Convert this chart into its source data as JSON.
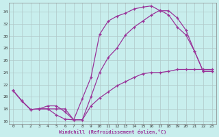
{
  "xlabel": "Windchill (Refroidissement éolien,°C)",
  "bg_color": "#c8eeed",
  "line_color": "#993399",
  "grid_color": "#b0c8c8",
  "xlim": [
    -0.5,
    23.5
  ],
  "ylim": [
    15.5,
    35.5
  ],
  "xticks": [
    0,
    1,
    2,
    3,
    4,
    5,
    6,
    7,
    8,
    9,
    10,
    11,
    12,
    13,
    14,
    15,
    16,
    17,
    18,
    19,
    20,
    21,
    22,
    23
  ],
  "yticks": [
    16,
    18,
    20,
    22,
    24,
    26,
    28,
    30,
    32,
    34
  ],
  "curve1_x": [
    0,
    1,
    2,
    3,
    4,
    5,
    6,
    7,
    8,
    9,
    10,
    11,
    12,
    13,
    14,
    15,
    16,
    17,
    18,
    19,
    20,
    21,
    22,
    23
  ],
  "curve1_y": [
    21.0,
    19.3,
    17.9,
    18.0,
    18.0,
    17.0,
    16.3,
    16.2,
    19.7,
    23.2,
    30.3,
    32.5,
    33.3,
    33.8,
    34.5,
    34.8,
    35.0,
    34.2,
    34.2,
    33.0,
    31.0,
    27.5,
    24.2,
    24.2
  ],
  "curve2_x": [
    0,
    1,
    2,
    3,
    4,
    5,
    6,
    7,
    8,
    9,
    10,
    11,
    12,
    13,
    14,
    15,
    16,
    17,
    18,
    19,
    20,
    21,
    22,
    23
  ],
  "curve2_y": [
    21.0,
    19.3,
    17.9,
    18.0,
    18.0,
    18.0,
    18.0,
    16.2,
    16.2,
    20.0,
    24.0,
    26.5,
    28.0,
    30.2,
    31.5,
    32.5,
    33.5,
    34.3,
    33.5,
    31.5,
    30.2,
    27.5,
    24.2,
    24.2
  ],
  "curve3_x": [
    0,
    1,
    2,
    3,
    4,
    5,
    6,
    7,
    8,
    9,
    10,
    11,
    12,
    13,
    14,
    15,
    16,
    17,
    18,
    19,
    20,
    21,
    22,
    23
  ],
  "curve3_y": [
    21.0,
    19.3,
    17.9,
    18.0,
    18.5,
    18.5,
    17.5,
    16.2,
    16.2,
    18.5,
    19.8,
    20.8,
    21.8,
    22.5,
    23.2,
    23.8,
    24.0,
    24.0,
    24.2,
    24.5,
    24.5,
    24.5,
    24.5,
    24.5
  ]
}
